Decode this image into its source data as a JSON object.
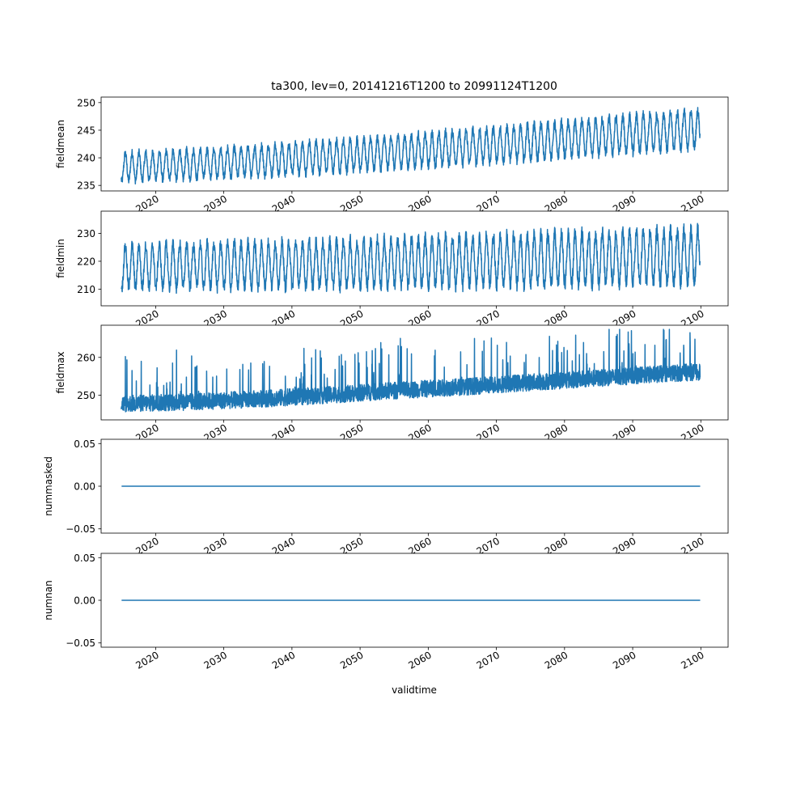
{
  "figure": {
    "title": "ta300, lev=0, 20141216T1200 to 20991124T1200",
    "xlabel": "validtime",
    "line_color": "#1f77b4"
  },
  "chart_data": [
    {
      "type": "line",
      "ylabel": "fieldmean",
      "x_range": [
        "2014-12-16",
        "2099-11-24"
      ],
      "xlim": [
        2012,
        2104
      ],
      "ylim": [
        234,
        251
      ],
      "yticks": [
        "235",
        "240",
        "245",
        "250"
      ],
      "xticks": [
        "2020",
        "2030",
        "2040",
        "2050",
        "2060",
        "2070",
        "2080",
        "2090",
        "2100"
      ],
      "series": [
        {
          "description": "seasonal oscillation with upward trend",
          "x": [
            2015,
            2025,
            2035,
            2045,
            2055,
            2065,
            2075,
            2085,
            2095,
            2099.9
          ],
          "mean": [
            238.3,
            238.8,
            239.4,
            240.2,
            241.0,
            241.9,
            242.8,
            243.8,
            244.8,
            245.2
          ],
          "amplitude": [
            2.5,
            2.6,
            2.7,
            2.8,
            2.9,
            3.0,
            3.1,
            3.2,
            3.3,
            3.3
          ],
          "max": 250.6,
          "min": 234.6
        }
      ]
    },
    {
      "type": "line",
      "ylabel": "fieldmin",
      "x_range": [
        "2014-12-16",
        "2099-11-24"
      ],
      "xlim": [
        2012,
        2104
      ],
      "ylim": [
        204,
        238
      ],
      "yticks": [
        "210",
        "220",
        "230"
      ],
      "xticks": [
        "2020",
        "2030",
        "2040",
        "2050",
        "2060",
        "2070",
        "2080",
        "2090",
        "2100"
      ],
      "series": [
        {
          "description": "large seasonal oscillation, slight upward trend",
          "x": [
            2015,
            2025,
            2035,
            2045,
            2055,
            2065,
            2075,
            2085,
            2095,
            2099.9
          ],
          "mean": [
            218.0,
            218.3,
            218.7,
            219.0,
            219.5,
            220.0,
            220.5,
            221.0,
            221.6,
            222.0
          ],
          "amplitude": [
            7.5,
            7.8,
            8.0,
            8.2,
            8.5,
            8.8,
            9.0,
            9.2,
            9.4,
            9.5
          ],
          "max": 236.5,
          "min": 205.0
        }
      ]
    },
    {
      "type": "line",
      "ylabel": "fieldmax",
      "x_range": [
        "2014-12-16",
        "2099-11-24"
      ],
      "xlim": [
        2012,
        2104
      ],
      "ylim": [
        243.5,
        268.5
      ],
      "yticks": [
        "250",
        "260"
      ],
      "xticks": [
        "2020",
        "2030",
        "2040",
        "2050",
        "2060",
        "2070",
        "2080",
        "2090",
        "2100"
      ],
      "series": [
        {
          "description": "noisy band with upward trend and spikes",
          "x": [
            2015,
            2025,
            2035,
            2045,
            2055,
            2065,
            2075,
            2085,
            2095,
            2099.9
          ],
          "baseline": [
            247.5,
            248.0,
            248.8,
            249.8,
            251.0,
            252.0,
            253.2,
            254.3,
            255.5,
            256.0
          ],
          "max": 267.4,
          "min": 245.0
        }
      ]
    },
    {
      "type": "line",
      "ylabel": "nummasked",
      "x_range": [
        "2014-12-16",
        "2099-11-24"
      ],
      "xlim": [
        2012,
        2104
      ],
      "ylim": [
        -0.055,
        0.055
      ],
      "yticks": [
        "0.05",
        "0.00",
        "−0.05"
      ],
      "xticks": [
        "2020",
        "2030",
        "2040",
        "2050",
        "2060",
        "2070",
        "2080",
        "2090",
        "2100"
      ],
      "series": [
        {
          "x": [
            2015,
            2099.9
          ],
          "values": [
            0,
            0
          ]
        }
      ]
    },
    {
      "type": "line",
      "ylabel": "numnan",
      "x_range": [
        "2014-12-16",
        "2099-11-24"
      ],
      "xlim": [
        2012,
        2104
      ],
      "ylim": [
        -0.055,
        0.055
      ],
      "yticks": [
        "0.05",
        "0.00",
        "−0.05"
      ],
      "xticks": [
        "2020",
        "2030",
        "2040",
        "2050",
        "2060",
        "2070",
        "2080",
        "2090",
        "2100"
      ],
      "series": [
        {
          "x": [
            2015,
            2099.9
          ],
          "values": [
            0,
            0
          ]
        }
      ]
    }
  ]
}
